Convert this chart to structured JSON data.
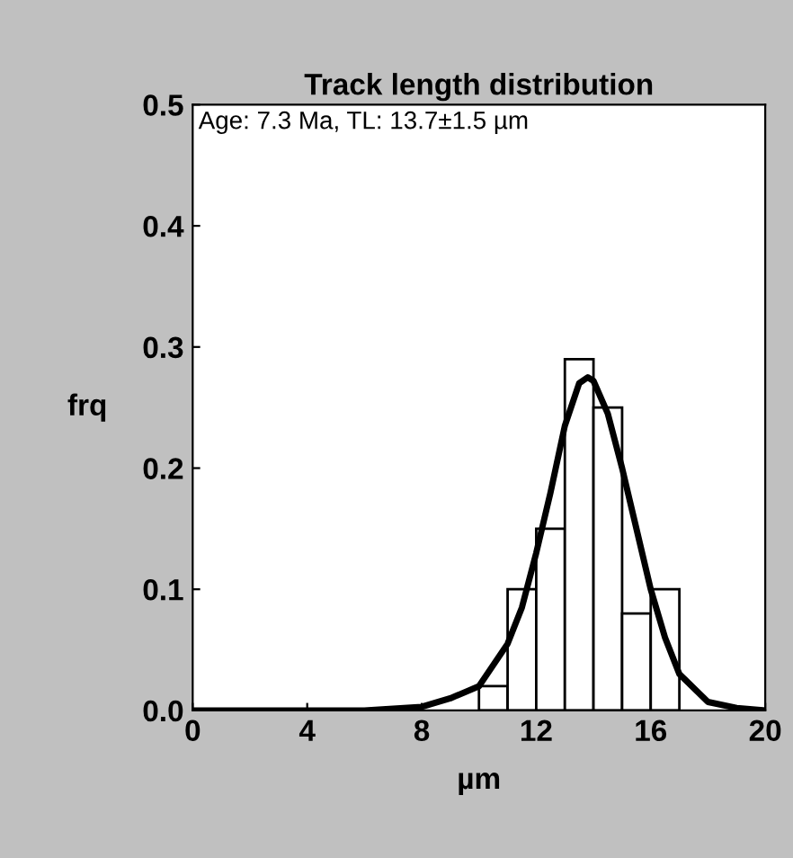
{
  "chart_data": {
    "type": "histogram",
    "title": "Track length distribution",
    "xlabel": "µm",
    "ylabel": "frq",
    "annotations": [
      "Age: 7.3 Ma, TL: 13.7±1.5 µm"
    ],
    "xlim": [
      0,
      20
    ],
    "xticks": [
      0,
      4,
      8,
      12,
      16,
      20
    ],
    "ylim": [
      0,
      0.5
    ],
    "yticks": [
      {
        "value": 0,
        "label": "0.0"
      },
      {
        "value": 0.1,
        "label": "0.1"
      },
      {
        "value": 0.2,
        "label": "0.2"
      },
      {
        "value": 0.3,
        "label": "0.3"
      },
      {
        "value": 0.4,
        "label": "0.4"
      },
      {
        "value": 0.5,
        "label": "0.5"
      }
    ],
    "grid": false,
    "legend": false,
    "series": [
      {
        "color": "#ffffff",
        "bins": [
          10,
          11,
          12,
          13,
          14,
          15,
          16,
          17
        ],
        "values": [
          0.02,
          0.1,
          0.15,
          0.29,
          0.25,
          0.08,
          0.1
        ]
      },
      {
        "type": "line",
        "color": "#000000",
        "x": [
          0,
          6,
          8,
          9,
          10,
          11,
          11.5,
          12,
          12.5,
          13,
          13.5,
          13.8,
          14,
          14.5,
          15,
          15.5,
          16,
          16.5,
          17,
          18,
          19,
          20
        ],
        "values": [
          0,
          0,
          0.003,
          0.01,
          0.02,
          0.055,
          0.085,
          0.13,
          0.18,
          0.235,
          0.27,
          0.275,
          0.272,
          0.245,
          0.2,
          0.15,
          0.1,
          0.06,
          0.03,
          0.007,
          0.002,
          0
        ]
      }
    ]
  }
}
